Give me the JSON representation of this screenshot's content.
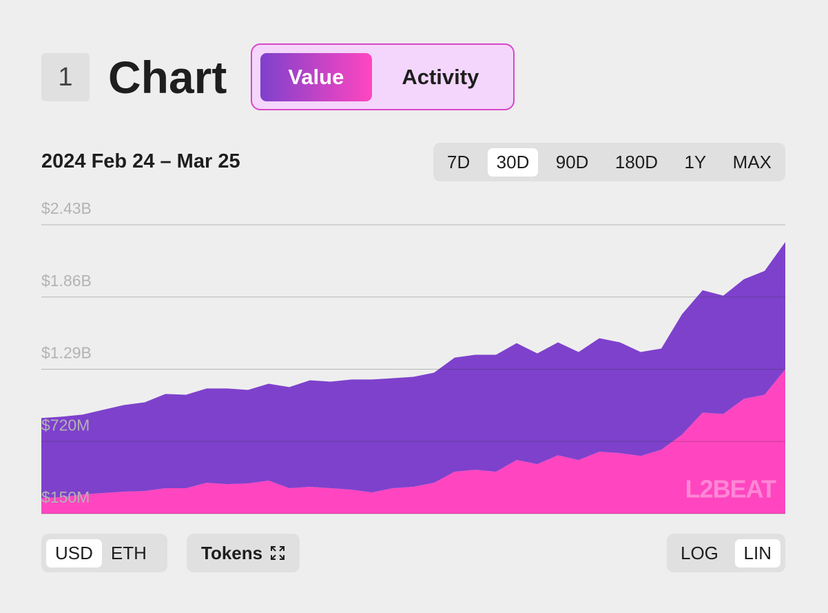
{
  "header": {
    "number": "1",
    "title": "Chart",
    "tabs": [
      "Value",
      "Activity"
    ],
    "active_tab": 0
  },
  "date_range": "2024 Feb 24 – Mar 25",
  "ranges": [
    "7D",
    "30D",
    "90D",
    "180D",
    "1Y",
    "MAX"
  ],
  "active_range": 1,
  "currencies": [
    "USD",
    "ETH"
  ],
  "active_currency": 0,
  "tokens": "Tokens",
  "scales": [
    "LOG",
    "LIN"
  ],
  "active_scale": 1,
  "watermark": "L2BEAT",
  "chart_data": {
    "type": "area",
    "stacked": true,
    "log": false,
    "grid": true,
    "ylim": [
      150000000,
      2430000000
    ],
    "yticks": [
      {
        "value": 150000000,
        "label": "$150M"
      },
      {
        "value": 720000000,
        "label": "$720M"
      },
      {
        "value": 1290000000,
        "label": "$1.29B"
      },
      {
        "value": 1860000000,
        "label": "$1.86B"
      },
      {
        "value": 2430000000,
        "label": "$2.43B"
      }
    ],
    "series": [
      {
        "color": "#ff46c0",
        "values": [
          275000000,
          280000000,
          302000000,
          313000000,
          324000000,
          329000000,
          351000000,
          351000000,
          394000000,
          383000000,
          389000000,
          411000000,
          351000000,
          362000000,
          351000000,
          340000000,
          318000000,
          351000000,
          362000000,
          394000000,
          481000000,
          497000000,
          481000000,
          574000000,
          541000000,
          611000000,
          574000000,
          639000000,
          628000000,
          606000000,
          655000000,
          774000000,
          948000000,
          937000000,
          1057000000,
          1089000000,
          1290000000
        ]
      },
      {
        "color": "#7e41cc",
        "values": [
          630000000,
          636000000,
          630000000,
          657000000,
          684000000,
          700000000,
          744000000,
          738000000,
          744000000,
          755000000,
          738000000,
          765000000,
          798000000,
          841000000,
          841000000,
          869000000,
          891000000,
          868000000,
          868000000,
          869000000,
          901000000,
          907000000,
          923000000,
          922000000,
          874000000,
          891000000,
          852000000,
          896000000,
          874000000,
          820000000,
          798000000,
          950000000,
          966000000,
          934000000,
          944000000,
          977000000,
          1004000000
        ]
      }
    ]
  }
}
